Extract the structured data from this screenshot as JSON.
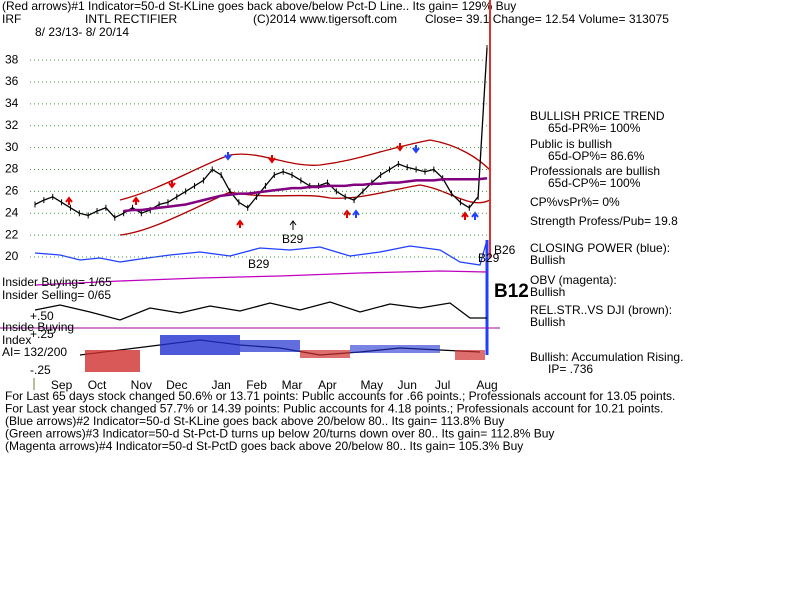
{
  "chart_data": {
    "type": "line",
    "header": "(Red arrows)#1 Indicator=50-d St-KLine goes back above/below Pct-D Line.. Its gain= 129% Buy",
    "ticker": "IRF",
    "company": "INTL RECTIFIER",
    "source": "(C)2014 www.tigersoft.com",
    "quote": "Close=  39.1  Change= 12.54 Volume= 313075",
    "date_range": "8/ 23/13-  8/ 20/14",
    "categories": [
      null,
      null,
      null,
      "Sep",
      null,
      null,
      null,
      "Oct",
      null,
      null,
      null,
      null,
      "Nov",
      null,
      null,
      null,
      "Dec",
      null,
      null,
      null,
      null,
      "Jan",
      null,
      null,
      null,
      "Feb",
      null,
      null,
      null,
      "Mar",
      null,
      null,
      null,
      "Apr",
      null,
      null,
      null,
      null,
      "May",
      null,
      null,
      null,
      "Jun",
      null,
      null,
      null,
      "Jul",
      null,
      null,
      null,
      null,
      "Aug"
    ],
    "series": [
      {
        "color": "#000000",
        "values": [
          24.8,
          25.2,
          25.5,
          25,
          24.5,
          24,
          23.8,
          24.2,
          24.5,
          23.6,
          24,
          24.5,
          24,
          24.3,
          24.8,
          25,
          25.5,
          26,
          26.5,
          27,
          28,
          27.5,
          26,
          25,
          24.5,
          25.5,
          26.5,
          27.5,
          27.8,
          27.5,
          27,
          26.5,
          26.5,
          26.8,
          26,
          25.5,
          25.2,
          26,
          26.8,
          27.5,
          28,
          28.5,
          28.2,
          28,
          27.8,
          28,
          27.2,
          25.8,
          25,
          24.5,
          25.5,
          39.1
        ]
      },
      {
        "color": "#800080",
        "values": [
          null,
          null,
          null,
          null,
          null,
          null,
          null,
          null,
          null,
          null,
          24.2,
          24.3,
          24.3,
          24.4,
          24.5,
          24.6,
          24.7,
          24.8,
          25,
          25.2,
          25.4,
          25.6,
          25.7,
          25.8,
          25.8,
          25.9,
          26,
          26.1,
          26.2,
          26.3,
          26.3,
          26.4,
          26.4,
          26.5,
          26.5,
          26.5,
          26.6,
          26.6,
          26.7,
          26.7,
          26.8,
          26.8,
          26.9,
          27,
          27,
          27,
          27.1,
          27.1,
          27.1,
          27.1,
          27.1,
          27.2
        ]
      }
    ],
    "ylim": [
      20,
      39.5
    ],
    "yticks": [
      20,
      22,
      24,
      26,
      28,
      30,
      32,
      34,
      36,
      38
    ],
    "grid": true,
    "annotations": [
      "B29",
      "B29",
      "B29",
      "B26",
      "B12"
    ],
    "side_notes": [
      "BULLISH PRICE TREND",
      "65d-PR%= 100%",
      "Public is bullish",
      "65d-OP%= 86.6%",
      "Professionals are bullish",
      "65d-CP%= 100%",
      "CP%vsPr%=  0%",
      "Strength Profess/Pub= 19.8",
      "CLOSING POWER (blue):",
      "Bullish",
      "OBV (magenta):",
      "Bullish",
      "REL.STR..VS DJI (brown):",
      "Bullish",
      "Bullish: Accumulation Rising.",
      "IP=  .736"
    ],
    "left_notes": [
      "Insider Buying= 1/65",
      "Insider Selling= 0/65",
      "+.50",
      "Inside Buying",
      "+.25",
      "Index",
      "AI= 132/200",
      "-.25"
    ],
    "footer": [
      "For Last 65 days stock changed  50.6% or  13.71 points:  Public accounts for  .66 points.;  Professionals account for  13.05 points.",
      "For Last year stock changed  57.7% or  14.39 points:  Public accounts for  4.18 points.;  Professionals account for  10.21 points.",
      "(Blue arrows)#2 Indicator=50-d St-KLine goes back above 20/below 80..  Its gain= 113.8% Buy",
      "(Green arrows)#3 Indicator=50-d St-Pct-D turns up below 20/turns down over 80..  Its gain= 112.8% Buy",
      "(Magenta arrows)#4 Indicator=50-d St-PctD goes back above 20/below 80..  Its gain= 105.3% Buy"
    ]
  }
}
